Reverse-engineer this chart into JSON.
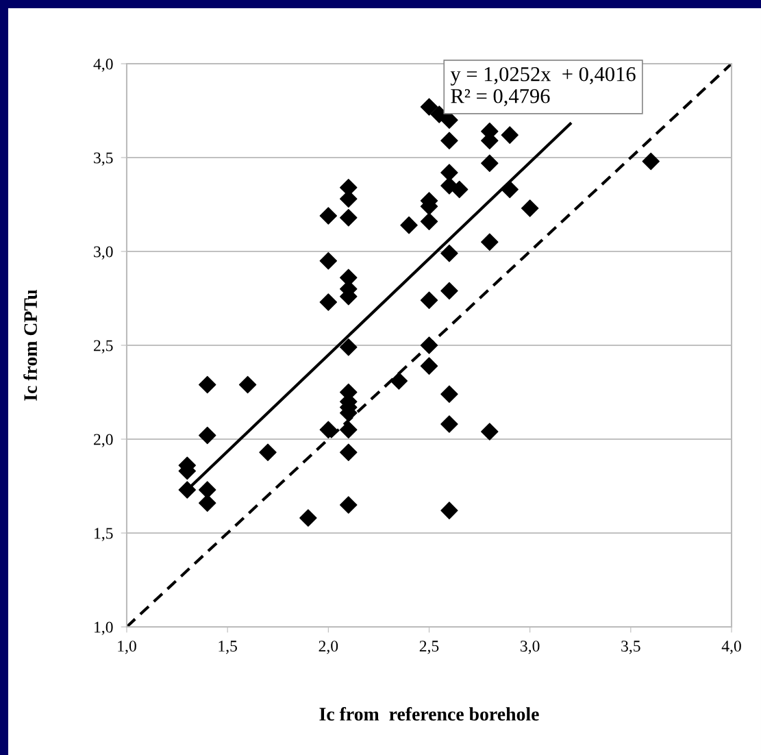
{
  "chart_data": {
    "type": "scatter",
    "xlabel": "Ic from  reference borehole",
    "ylabel": "Ic from CPTu",
    "annotations": [
      "y = 1,0252x  + 0,4016\nR² = 0,4796"
    ],
    "xlim": [
      1.0,
      4.0
    ],
    "ylim": [
      1.0,
      4.0
    ],
    "xticks": [
      {
        "value": 1.0,
        "label": "1,0"
      },
      {
        "value": 1.5,
        "label": "1,5"
      },
      {
        "value": 2.0,
        "label": "2,0"
      },
      {
        "value": 2.5,
        "label": "2,5"
      },
      {
        "value": 3.0,
        "label": "3,0"
      },
      {
        "value": 3.5,
        "label": "3,5"
      },
      {
        "value": 4.0,
        "label": "4,0"
      }
    ],
    "yticks": [
      {
        "value": 1.0,
        "label": "1,0"
      },
      {
        "value": 1.5,
        "label": "1,5"
      },
      {
        "value": 2.0,
        "label": "2,0"
      },
      {
        "value": 2.5,
        "label": "2,5"
      },
      {
        "value": 3.0,
        "label": "3,0"
      },
      {
        "value": 3.5,
        "label": "3,5"
      },
      {
        "value": 4.0,
        "label": "4,0"
      }
    ],
    "grid": "y",
    "legend": false,
    "series": [
      {
        "color": "#000000",
        "marker": "diamond",
        "x": [
          1.3,
          1.3,
          1.3,
          1.4,
          1.4,
          1.4,
          1.4,
          1.6,
          1.7,
          1.9,
          2.0,
          2.0,
          2.0,
          2.0,
          2.1,
          2.1,
          2.1,
          2.1,
          2.1,
          2.1,
          2.1,
          2.1,
          2.1,
          2.1,
          2.1,
          2.1,
          2.1,
          2.1,
          2.35,
          2.4,
          2.5,
          2.5,
          2.5,
          2.5,
          2.5,
          2.5,
          2.5,
          2.55,
          2.6,
          2.6,
          2.6,
          2.6,
          2.6,
          2.6,
          2.6,
          2.6,
          2.6,
          2.65,
          2.8,
          2.8,
          2.8,
          2.8,
          2.8,
          2.9,
          2.9,
          3.0,
          3.6
        ],
        "values": [
          1.86,
          1.83,
          1.73,
          2.29,
          2.02,
          1.73,
          1.66,
          2.29,
          1.93,
          1.58,
          3.19,
          2.95,
          2.73,
          2.05,
          3.34,
          3.28,
          3.18,
          2.86,
          2.8,
          2.76,
          2.49,
          2.25,
          2.2,
          2.17,
          2.14,
          2.05,
          1.93,
          1.65,
          2.31,
          3.14,
          3.77,
          3.27,
          3.24,
          3.16,
          2.74,
          2.5,
          2.39,
          3.73,
          3.7,
          3.59,
          3.42,
          3.35,
          2.99,
          2.79,
          2.24,
          2.08,
          1.62,
          3.33,
          3.64,
          3.59,
          3.47,
          3.05,
          2.04,
          3.62,
          3.33,
          3.23,
          3.48
        ]
      },
      {
        "type": "line",
        "color": "#000000",
        "marker": "none",
        "line_style": "solid",
        "x": [
          1.3,
          3.2
        ],
        "values": [
          1.73,
          3.68
        ]
      },
      {
        "type": "line",
        "color": "#000000",
        "marker": "none",
        "line_style": "dashed",
        "x": [
          1.0,
          4.0
        ],
        "values": [
          1.0,
          4.0
        ]
      }
    ]
  }
}
